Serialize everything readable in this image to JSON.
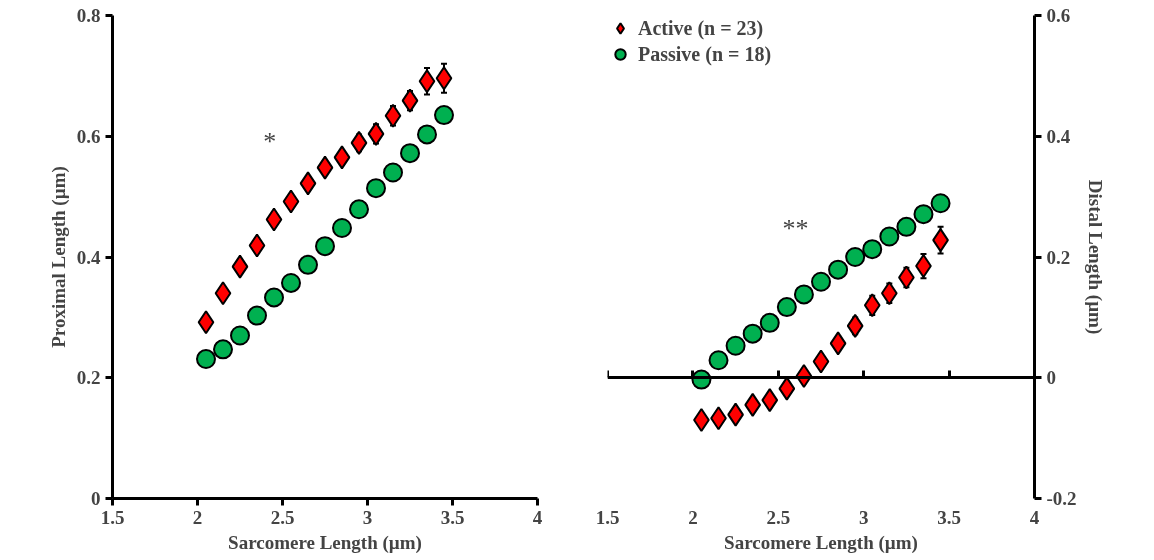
{
  "chart_data": [
    {
      "type": "scatter",
      "xlabel": "Sarcomere Length (µm)",
      "ylabel": "Proximal Length (µm)",
      "x": [
        2.05,
        2.15,
        2.25,
        2.35,
        2.45,
        2.55,
        2.65,
        2.75,
        2.85,
        2.95,
        3.05,
        3.15,
        3.25,
        3.35,
        3.45
      ],
      "xlim": [
        1.5,
        4
      ],
      "xticks": [
        1.5,
        2,
        2.5,
        3,
        3.5,
        4
      ],
      "ylim": [
        0,
        0.8
      ],
      "yticks": [
        0,
        0.2,
        0.4,
        0.6,
        0.8
      ],
      "annotations": [
        "*"
      ],
      "series": [
        {
          "color": "#ff0000",
          "marker": "diamond",
          "values": [
            0.292,
            0.34,
            0.384,
            0.419,
            0.462,
            0.492,
            0.522,
            0.548,
            0.565,
            0.589,
            0.604,
            0.634,
            0.659,
            0.691,
            0.696
          ],
          "errors": [
            null,
            null,
            null,
            null,
            null,
            null,
            null,
            null,
            0.012,
            0.014,
            0.016,
            0.016,
            0.016,
            0.022,
            0.024
          ]
        },
        {
          "color": "#00b050",
          "marker": "circle",
          "values": [
            0.231,
            0.247,
            0.27,
            0.303,
            0.333,
            0.357,
            0.387,
            0.418,
            0.448,
            0.479,
            0.514,
            0.54,
            0.572,
            0.603,
            0.635
          ]
        }
      ]
    },
    {
      "type": "scatter",
      "xlabel": "Sarcomere Length (µm)",
      "y2label": "Distal Length (µm)",
      "x": [
        2.05,
        2.15,
        2.25,
        2.35,
        2.45,
        2.55,
        2.65,
        2.75,
        2.85,
        2.95,
        3.05,
        3.15,
        3.25,
        3.35,
        3.45
      ],
      "xlim": [
        1.5,
        4
      ],
      "xticks": [
        1.5,
        2,
        2.5,
        3,
        3.5,
        4
      ],
      "y2lim": [
        -0.2,
        0.6
      ],
      "y2ticks": [
        -0.2,
        0,
        0.2,
        0.4,
        0.6
      ],
      "legend": "top left",
      "annotations": [
        "**"
      ],
      "series": [
        {
          "name": "Active (n = 23)",
          "color": "#ff0000",
          "marker": "diamond",
          "axis": "y2",
          "values": [
            -0.07,
            -0.067,
            -0.061,
            -0.045,
            -0.037,
            -0.018,
            0.003,
            0.027,
            0.057,
            0.086,
            0.12,
            0.14,
            0.166,
            0.185,
            0.228
          ],
          "errors": [
            null,
            null,
            null,
            null,
            null,
            null,
            0.008,
            0.008,
            0.012,
            0.014,
            0.016,
            0.016,
            0.016,
            0.02,
            0.022
          ]
        },
        {
          "name": "Passive (n = 18)",
          "color": "#00b050",
          "marker": "circle",
          "axis": "y2",
          "values": [
            -0.003,
            0.029,
            0.053,
            0.073,
            0.091,
            0.117,
            0.138,
            0.159,
            0.179,
            0.2,
            0.213,
            0.234,
            0.25,
            0.271,
            0.289
          ]
        }
      ]
    }
  ]
}
